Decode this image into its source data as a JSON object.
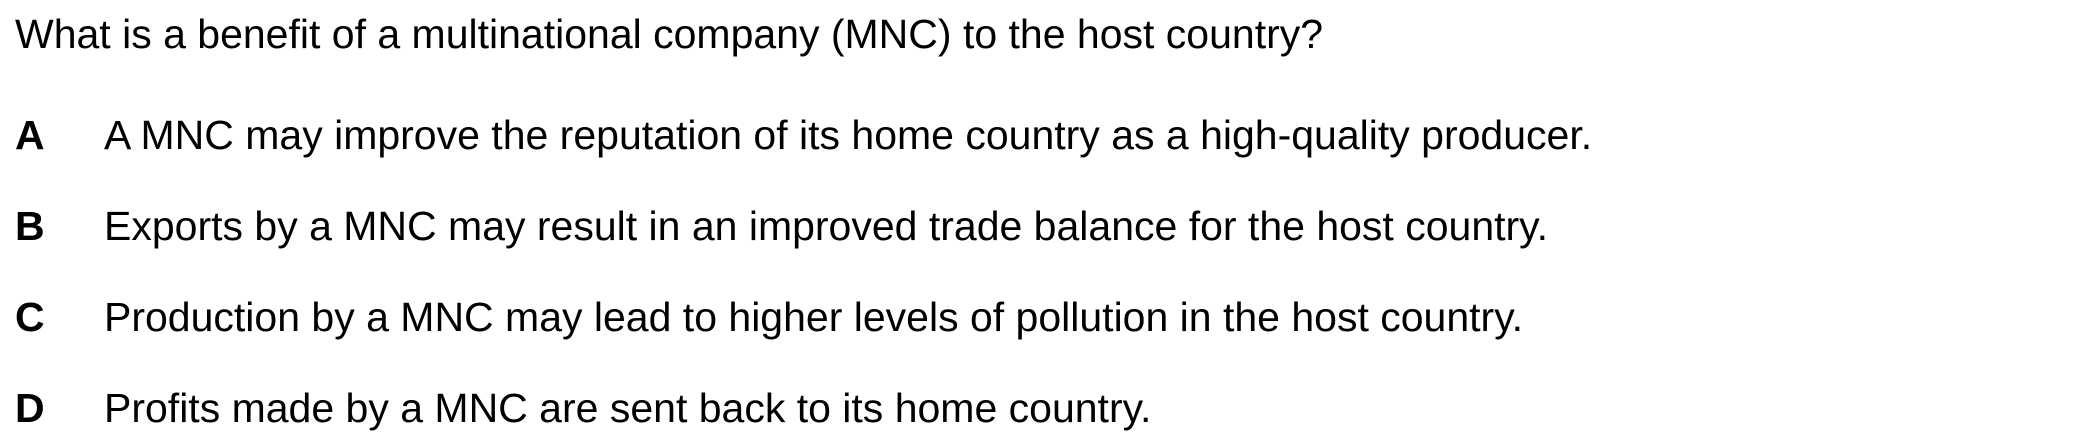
{
  "question": {
    "text": "What is a benefit of a multinational company (MNC) to the host country?"
  },
  "options": [
    {
      "letter": "A",
      "text": "A MNC may improve the reputation of its home country as a high-quality producer."
    },
    {
      "letter": "B",
      "text": "Exports by a MNC may result in an improved trade balance for the host country."
    },
    {
      "letter": "C",
      "text": "Production by a MNC may lead to higher levels of pollution in the host country."
    },
    {
      "letter": "D",
      "text": "Profits made by a MNC are sent back to its home country."
    }
  ]
}
